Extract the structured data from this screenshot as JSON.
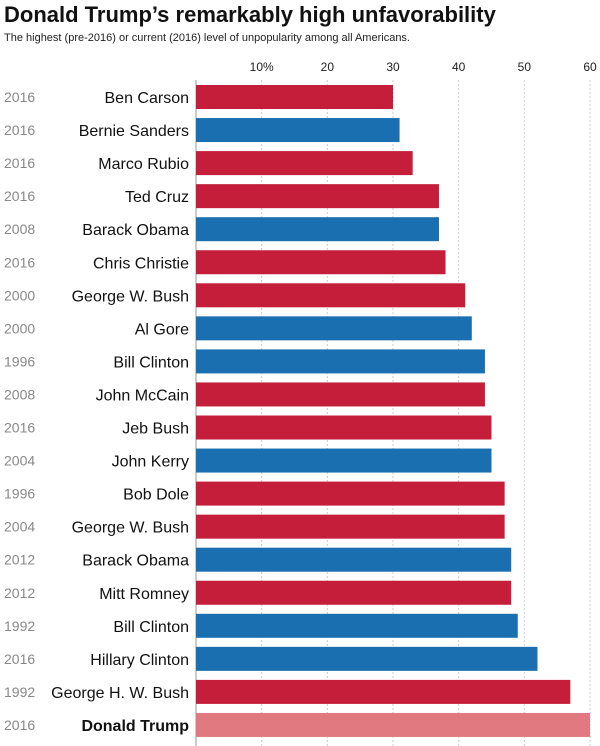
{
  "chart_data": {
    "type": "bar",
    "orientation": "horizontal",
    "title": "Donald Trump’s remarkably high unfavorability",
    "subtitle": "The highest (pre-2016) or current (2016) level of unpopularity among all Americans.",
    "xlim": [
      0,
      60
    ],
    "x_ticks": [
      {
        "value": 10,
        "label": "10%"
      },
      {
        "value": 20,
        "label": "20"
      },
      {
        "value": 30,
        "label": "30"
      },
      {
        "value": 40,
        "label": "40"
      },
      {
        "value": 50,
        "label": "50"
      },
      {
        "value": 60,
        "label": "60"
      }
    ],
    "grid": true,
    "colors": {
      "republican": "#c41e3a",
      "democrat": "#1a6fb0",
      "highlight": "#e07a80",
      "grid": "#cccccc"
    },
    "rows": [
      {
        "year": "2016",
        "name": "Ben Carson",
        "value": 30,
        "party": "republican"
      },
      {
        "year": "2016",
        "name": "Bernie Sanders",
        "value": 31,
        "party": "democrat"
      },
      {
        "year": "2016",
        "name": "Marco Rubio",
        "value": 33,
        "party": "republican"
      },
      {
        "year": "2016",
        "name": "Ted Cruz",
        "value": 37,
        "party": "republican"
      },
      {
        "year": "2008",
        "name": "Barack Obama",
        "value": 37,
        "party": "democrat"
      },
      {
        "year": "2016",
        "name": "Chris Christie",
        "value": 38,
        "party": "republican"
      },
      {
        "year": "2000",
        "name": "George W. Bush",
        "value": 41,
        "party": "republican"
      },
      {
        "year": "2000",
        "name": "Al Gore",
        "value": 42,
        "party": "democrat"
      },
      {
        "year": "1996",
        "name": "Bill Clinton",
        "value": 44,
        "party": "democrat"
      },
      {
        "year": "2008",
        "name": "John McCain",
        "value": 44,
        "party": "republican"
      },
      {
        "year": "2016",
        "name": "Jeb Bush",
        "value": 45,
        "party": "republican"
      },
      {
        "year": "2004",
        "name": "John Kerry",
        "value": 45,
        "party": "democrat"
      },
      {
        "year": "1996",
        "name": "Bob Dole",
        "value": 47,
        "party": "republican"
      },
      {
        "year": "2004",
        "name": "George W. Bush",
        "value": 47,
        "party": "republican"
      },
      {
        "year": "2012",
        "name": "Barack Obama",
        "value": 48,
        "party": "democrat"
      },
      {
        "year": "2012",
        "name": "Mitt Romney",
        "value": 48,
        "party": "republican"
      },
      {
        "year": "1992",
        "name": "Bill Clinton",
        "value": 49,
        "party": "democrat"
      },
      {
        "year": "2016",
        "name": "Hillary Clinton",
        "value": 52,
        "party": "democrat"
      },
      {
        "year": "1992",
        "name": "George H. W. Bush",
        "value": 57,
        "party": "republican"
      },
      {
        "year": "2016",
        "name": "Donald Trump",
        "value": 60,
        "party": "highlight",
        "highlight": true
      }
    ]
  }
}
